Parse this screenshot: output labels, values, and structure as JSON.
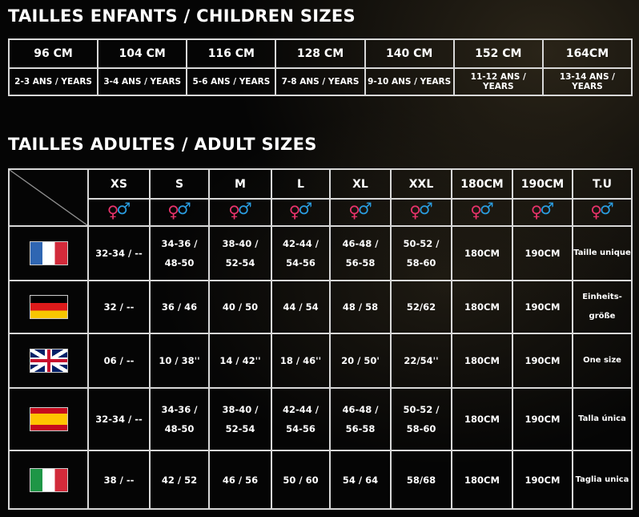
{
  "children": {
    "title": "TAILLES ENFANTS / CHILDREN SIZES",
    "sizes": [
      "96 CM",
      "104 CM",
      "116 CM",
      "128 CM",
      "140 CM",
      "152 CM",
      "164CM"
    ],
    "ages": [
      "2-3 ANS / YEARS",
      "3-4 ANS / YEARS",
      "5-6 ANS / YEARS",
      "7-8 ANS / YEARS",
      "9-10 ANS / YEARS",
      "11-12 ANS / YEARS",
      "13-14 ANS / YEARS"
    ]
  },
  "adult": {
    "title": "TAILLES ADULTES / ADULT SIZES",
    "headers": [
      "XS",
      "S",
      "M",
      "L",
      "XL",
      "XXL",
      "180CM",
      "190CM",
      "T.U"
    ],
    "gender_icons": {
      "female": "♀",
      "male": "♂",
      "female_color": "#e8336b",
      "male_color": "#2a9de0"
    },
    "rows": [
      {
        "country": "France",
        "flag": "fr-flag-icon",
        "values": [
          "32-34 / --",
          "34-36 / 48-50",
          "38-40 / 52-54",
          "42-44 / 54-56",
          "46-48 / 56-58",
          "50-52 / 58-60",
          "180CM",
          "190CM",
          "Taille unique"
        ]
      },
      {
        "country": "Germany",
        "flag": "de-flag-icon",
        "values": [
          "32 / --",
          "36 / 46",
          "40 / 50",
          "44 / 54",
          "48 / 58",
          "52/62",
          "180CM",
          "190CM",
          "Einheits-größe"
        ]
      },
      {
        "country": "United Kingdom",
        "flag": "uk-flag-icon",
        "values": [
          "06 / --",
          "10 / 38''",
          "14 / 42''",
          "18 / 46''",
          "20 / 50'",
          "22/54''",
          "180CM",
          "190CM",
          "One size"
        ]
      },
      {
        "country": "Spain",
        "flag": "es-flag-icon",
        "values": [
          "32-34 / --",
          "34-36 / 48-50",
          "38-40 / 52-54",
          "42-44 / 54-56",
          "46-48 / 56-58",
          "50-52 / 58-60",
          "180CM",
          "190CM",
          "Talla única"
        ]
      },
      {
        "country": "Italy",
        "flag": "it-flag-icon",
        "values": [
          "38 / --",
          "42 / 52",
          "46 / 56",
          "50 / 60",
          "54 / 64",
          "58/68",
          "180CM",
          "190CM",
          "Taglia unica"
        ]
      }
    ]
  }
}
